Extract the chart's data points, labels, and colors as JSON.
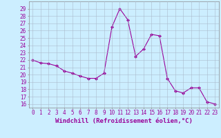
{
  "x": [
    0,
    1,
    2,
    3,
    4,
    5,
    6,
    7,
    8,
    9,
    10,
    11,
    12,
    13,
    14,
    15,
    16,
    17,
    18,
    19,
    20,
    21,
    22,
    23
  ],
  "y": [
    22.0,
    21.6,
    21.5,
    21.2,
    20.5,
    20.2,
    19.8,
    19.5,
    19.5,
    20.2,
    26.5,
    29.0,
    27.5,
    22.5,
    23.5,
    25.5,
    25.3,
    19.5,
    17.8,
    17.5,
    18.2,
    18.2,
    16.3,
    16.0
  ],
  "line_color": "#990099",
  "marker": "D",
  "marker_size": 2.0,
  "bg_color": "#cceeff",
  "grid_color": "#aabbcc",
  "xlabel": "Windchill (Refroidissement éolien,°C)",
  "xlabel_color": "#990099",
  "xlabel_fontsize": 6.5,
  "ylabel_ticks": [
    16,
    17,
    18,
    19,
    20,
    21,
    22,
    23,
    24,
    25,
    26,
    27,
    28,
    29
  ],
  "ylim": [
    15.5,
    30.0
  ],
  "xlim": [
    -0.5,
    23.5
  ],
  "tick_fontsize": 5.5,
  "tick_color": "#990099"
}
